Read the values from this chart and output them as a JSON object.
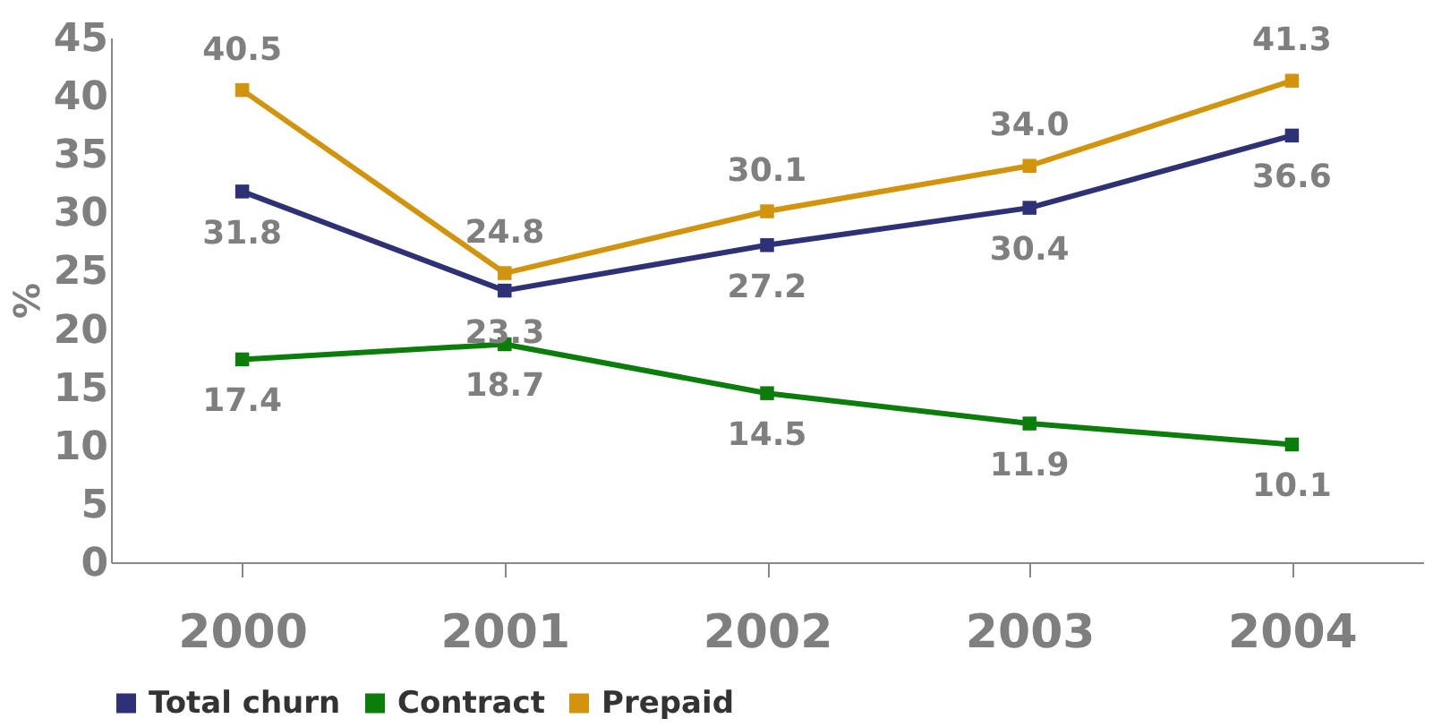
{
  "chart_data": {
    "type": "line",
    "ylabel": "%",
    "categories": [
      "2000",
      "2001",
      "2002",
      "2003",
      "2004"
    ],
    "series": [
      {
        "name": "Total churn",
        "color": "#2e3176",
        "values": [
          31.8,
          23.3,
          27.2,
          30.4,
          36.6
        ],
        "value_labels": [
          "31.8",
          "23.3",
          "27.2",
          "30.4",
          "36.6"
        ]
      },
      {
        "name": "Contract",
        "color": "#0b7d0b",
        "values": [
          17.4,
          18.7,
          14.5,
          11.9,
          10.1
        ],
        "value_labels": [
          "17.4",
          "18.7",
          "14.5",
          "11.9",
          "10.1"
        ]
      },
      {
        "name": "Prepaid",
        "color": "#d2940c",
        "values": [
          40.5,
          24.8,
          30.1,
          34.0,
          41.3
        ],
        "value_labels": [
          "40.5",
          "24.8",
          "30.1",
          "34.0",
          "41.3"
        ]
      }
    ],
    "ylim": [
      0,
      45
    ],
    "yticks": [
      0,
      5,
      10,
      15,
      20,
      25,
      30,
      35,
      40,
      45
    ],
    "grid": false,
    "legend": "bottom",
    "marker": "square",
    "line_style": "solid"
  }
}
